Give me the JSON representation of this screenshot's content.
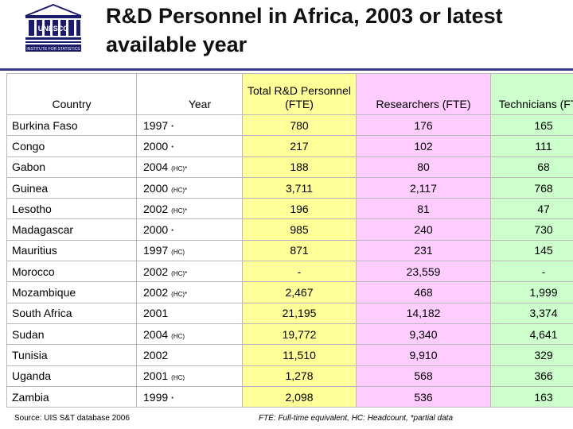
{
  "header": {
    "title": "R&D Personnel in Africa, 2003 or latest available year",
    "logo_text": "UNESCO",
    "logo_subtext": "INSTITUTE FOR STATISTICS"
  },
  "table": {
    "columns": [
      "Country",
      "Year",
      "Total R&D Personnel (FTE)",
      "Researchers (FTE)",
      "Technicians (FTE)"
    ],
    "rows": [
      {
        "country": "Burkina Faso",
        "year": "1997",
        "note": "*",
        "total": "780",
        "researchers": "176",
        "technicians": "165"
      },
      {
        "country": "Congo",
        "year": "2000",
        "note": "*",
        "total": "217",
        "researchers": "102",
        "technicians": "111"
      },
      {
        "country": "Gabon",
        "year": "2004",
        "note": "(HC)*",
        "total": "188",
        "researchers": "80",
        "technicians": "68"
      },
      {
        "country": "Guinea",
        "year": "2000",
        "note": "(HC)*",
        "total": "3,711",
        "researchers": "2,117",
        "technicians": "768"
      },
      {
        "country": "Lesotho",
        "year": "2002",
        "note": "(HC)*",
        "total": "196",
        "researchers": "81",
        "technicians": "47"
      },
      {
        "country": "Madagascar",
        "year": "2000",
        "note": "*",
        "total": "985",
        "researchers": "240",
        "technicians": "730"
      },
      {
        "country": "Mauritius",
        "year": "1997",
        "note": "(HC)",
        "total": "871",
        "researchers": "231",
        "technicians": "145"
      },
      {
        "country": "Morocco",
        "year": "2002",
        "note": "(HC)*",
        "total": "-",
        "researchers": "23,559",
        "technicians": "-"
      },
      {
        "country": "Mozambique",
        "year": "2002",
        "note": "(HC)*",
        "total": "2,467",
        "researchers": "468",
        "technicians": "1,999"
      },
      {
        "country": "South Africa",
        "year": "2001",
        "note": "",
        "total": "21,195",
        "researchers": "14,182",
        "technicians": "3,374"
      },
      {
        "country": "Sudan",
        "year": "2004",
        "note": "(HC)",
        "total": "19,772",
        "researchers": "9,340",
        "technicians": "4,641"
      },
      {
        "country": "Tunisia",
        "year": "2002",
        "note": "",
        "total": "11,510",
        "researchers": "9,910",
        "technicians": "329"
      },
      {
        "country": "Uganda",
        "year": "2001",
        "note": "(HC)",
        "total": "1,278",
        "researchers": "568",
        "technicians": "366"
      },
      {
        "country": "Zambia",
        "year": "1999",
        "note": "*",
        "total": "2,098",
        "researchers": "536",
        "technicians": "163"
      }
    ]
  },
  "footer": {
    "source": "Source: UIS S&T database 2006",
    "footnote": "FTE: Full-time equivalent, HC: Headcount, *partial data"
  },
  "colors": {
    "total_bg": "#ffff99",
    "researchers_bg": "#ffccff",
    "technicians_bg": "#ccffcc",
    "rule": "#3a3a8c"
  }
}
